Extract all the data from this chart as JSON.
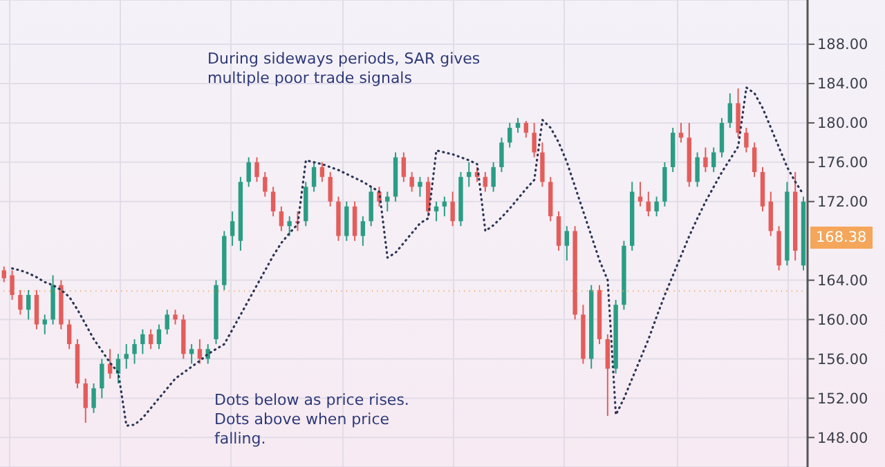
{
  "chart_data": {
    "type": "candlestick",
    "categories": [
      null,
      null,
      null,
      null,
      null,
      null,
      null,
      null,
      null,
      null,
      null,
      null,
      null,
      null,
      null,
      null,
      null,
      null,
      null,
      null,
      null,
      null,
      null,
      null,
      null,
      null,
      null,
      null,
      null,
      null,
      null,
      null,
      null,
      null,
      null,
      null,
      null,
      null,
      null,
      null,
      null,
      null,
      null,
      null,
      null,
      null,
      null,
      null,
      null,
      null,
      null,
      null,
      null,
      null,
      null,
      null,
      null,
      null,
      null,
      null,
      null,
      null,
      null,
      null,
      null,
      null,
      null,
      null,
      null,
      null,
      null,
      null,
      null,
      null,
      null,
      null,
      null,
      null,
      null,
      null,
      null,
      null,
      null,
      null,
      null,
      null,
      null,
      null,
      null,
      null,
      null,
      null,
      null,
      null,
      null,
      null,
      null,
      null,
      null
    ],
    "ohlc": [
      [
        165,
        165.4,
        163.8,
        164.2
      ],
      [
        164.5,
        165,
        162,
        162.5
      ],
      [
        162.5,
        163,
        160.5,
        161
      ],
      [
        161,
        163,
        160,
        162.5
      ],
      [
        162.5,
        163,
        159,
        159.5
      ],
      [
        159.5,
        160.5,
        158.5,
        160
      ],
      [
        160,
        164.5,
        159.5,
        163.5
      ],
      [
        163.5,
        164,
        159,
        159.5
      ],
      [
        159.5,
        160,
        157,
        157.5
      ],
      [
        157.5,
        158,
        153,
        153.5
      ],
      [
        153.5,
        154,
        149.5,
        151
      ],
      [
        151,
        153.5,
        150.5,
        153
      ],
      [
        153,
        156,
        152,
        155.5
      ],
      [
        155.5,
        157,
        154,
        154.5
      ],
      [
        154.5,
        156.5,
        153.5,
        156
      ],
      [
        156,
        157.5,
        155,
        156.5
      ],
      [
        156.5,
        158,
        155.5,
        157.5
      ],
      [
        157.5,
        159,
        156.5,
        158.5
      ],
      [
        158.5,
        159,
        157,
        157.5
      ],
      [
        157.5,
        159.5,
        157,
        159
      ],
      [
        159,
        161,
        158.5,
        160.5
      ],
      [
        160.5,
        161,
        159.5,
        160
      ],
      [
        160,
        160.5,
        156,
        156.5
      ],
      [
        156.5,
        157.5,
        155.5,
        157
      ],
      [
        157,
        158,
        155.5,
        156
      ],
      [
        156,
        157.5,
        155.5,
        157
      ],
      [
        158,
        164,
        157.5,
        163.5
      ],
      [
        163.5,
        169,
        163,
        168.5
      ],
      [
        168.5,
        171,
        167.5,
        170
      ],
      [
        168,
        174.5,
        167,
        174
      ],
      [
        174,
        176.5,
        173.5,
        176
      ],
      [
        176,
        176.5,
        174,
        174.5
      ],
      [
        174.5,
        175,
        172.5,
        173
      ],
      [
        173,
        173.5,
        170.5,
        171
      ],
      [
        171,
        171.5,
        169,
        169.5
      ],
      [
        169.5,
        170.5,
        168.5,
        170
      ],
      [
        170,
        171,
        169,
        169.8
      ],
      [
        170,
        174,
        169.5,
        173.5
      ],
      [
        173.5,
        176,
        173,
        175.5
      ],
      [
        175.5,
        176,
        174,
        174.5
      ],
      [
        174.5,
        175,
        171.5,
        172
      ],
      [
        172,
        172.5,
        168,
        168.5
      ],
      [
        168.5,
        172,
        168,
        171.5
      ],
      [
        171.5,
        172,
        168,
        168.5
      ],
      [
        168.5,
        170.5,
        167.5,
        170
      ],
      [
        170,
        173.5,
        169.5,
        173
      ],
      [
        173,
        173.5,
        171.5,
        172
      ],
      [
        172,
        173,
        171,
        172.5
      ],
      [
        172.5,
        177,
        172,
        176.5
      ],
      [
        176.5,
        177,
        174,
        174.5
      ],
      [
        174.5,
        175,
        173,
        173.5
      ],
      [
        173.5,
        174.5,
        172.5,
        174
      ],
      [
        174,
        174.5,
        170.5,
        171
      ],
      [
        171,
        172,
        170,
        171.5
      ],
      [
        171.5,
        172.5,
        170.5,
        172
      ],
      [
        172,
        173,
        169.5,
        170
      ],
      [
        170,
        175,
        169.5,
        174.5
      ],
      [
        174.5,
        176,
        173.5,
        175
      ],
      [
        175,
        175.5,
        174,
        174.5
      ],
      [
        174.5,
        175,
        173,
        173.5
      ],
      [
        173.5,
        176,
        173,
        175.5
      ],
      [
        175.5,
        178.5,
        175,
        178
      ],
      [
        178,
        180,
        177.5,
        179.5
      ],
      [
        179.5,
        180.5,
        179,
        180
      ],
      [
        180,
        180.2,
        178.5,
        179
      ],
      [
        179,
        180,
        176.5,
        177
      ],
      [
        177,
        178,
        173.5,
        174
      ],
      [
        174,
        174.5,
        170,
        170.5
      ],
      [
        170.5,
        171,
        167,
        167.5
      ],
      [
        167.5,
        169.5,
        166,
        169
      ],
      [
        169,
        169.5,
        160,
        160.5
      ],
      [
        160.5,
        161.5,
        155.5,
        156
      ],
      [
        156,
        163.5,
        155,
        163
      ],
      [
        163,
        163.5,
        157.5,
        158
      ],
      [
        158,
        158.5,
        150.2,
        155
      ],
      [
        155,
        162,
        154.5,
        161.5
      ],
      [
        161.5,
        168,
        161,
        167.5
      ],
      [
        167.5,
        174,
        167,
        173
      ],
      [
        172.5,
        174,
        171.5,
        172
      ],
      [
        172,
        173,
        170.5,
        171
      ],
      [
        171,
        172.5,
        170.5,
        172
      ],
      [
        172,
        176,
        171.5,
        175.5
      ],
      [
        175.5,
        179.5,
        175,
        179
      ],
      [
        179,
        180,
        178,
        178.5
      ],
      [
        178.5,
        180,
        173.5,
        174
      ],
      [
        174,
        177,
        173.5,
        176.5
      ],
      [
        176.5,
        177.5,
        175,
        175.5
      ],
      [
        175.5,
        177.5,
        175,
        177
      ],
      [
        177,
        180.5,
        176.5,
        180
      ],
      [
        180,
        183,
        179.5,
        182
      ],
      [
        182,
        183.5,
        178.5,
        179
      ],
      [
        179,
        179.5,
        177,
        177.5
      ],
      [
        177.5,
        178,
        174.5,
        175
      ],
      [
        175,
        175.5,
        171,
        171.5
      ],
      [
        172,
        173,
        168.5,
        169
      ],
      [
        169,
        169.5,
        165,
        165.5
      ],
      [
        166,
        174,
        165.5,
        173
      ],
      [
        173,
        175,
        166,
        167
      ],
      [
        165.5,
        172.5,
        165,
        172
      ]
    ],
    "colors": [
      "#e35d5b",
      "#e35d5b",
      "#e35d5b",
      "#2a9d84",
      "#e35d5b",
      "#2a9d84",
      "#2a9d84",
      "#e35d5b",
      "#e35d5b",
      "#e35d5b",
      "#e35d5b",
      "#2a9d84",
      "#2a9d84",
      "#e35d5b",
      "#2a9d84",
      "#2a9d84",
      "#2a9d84",
      "#2a9d84",
      "#e35d5b",
      "#2a9d84",
      "#2a9d84",
      "#e35d5b",
      "#e35d5b",
      "#2a9d84",
      "#e35d5b",
      "#2a9d84",
      "#2a9d84",
      "#2a9d84",
      "#2a9d84",
      "#2a9d84",
      "#2a9d84",
      "#e35d5b",
      "#e35d5b",
      "#e35d5b",
      "#e35d5b",
      "#2a9d84",
      "#e35d5b",
      "#2a9d84",
      "#2a9d84",
      "#e35d5b",
      "#e35d5b",
      "#e35d5b",
      "#2a9d84",
      "#e35d5b",
      "#2a9d84",
      "#2a9d84",
      "#e35d5b",
      "#2a9d84",
      "#2a9d84",
      "#e35d5b",
      "#e35d5b",
      "#2a9d84",
      "#e35d5b",
      "#2a9d84",
      "#2a9d84",
      "#e35d5b",
      "#2a9d84",
      "#2a9d84",
      "#e35d5b",
      "#e35d5b",
      "#2a9d84",
      "#2a9d84",
      "#2a9d84",
      "#2a9d84",
      "#e35d5b",
      "#e35d5b",
      "#e35d5b",
      "#e35d5b",
      "#e35d5b",
      "#2a9d84",
      "#e35d5b",
      "#e35d5b",
      "#2a9d84",
      "#e35d5b",
      "#e35d5b",
      "#2a9d84",
      "#2a9d84",
      "#2a9d84",
      "#e35d5b",
      "#e35d5b",
      "#2a9d84",
      "#2a9d84",
      "#2a9d84",
      "#e35d5b",
      "#e35d5b",
      "#2a9d84",
      "#e35d5b",
      "#2a9d84",
      "#2a9d84",
      "#2a9d84",
      "#e35d5b",
      "#e35d5b",
      "#e35d5b",
      "#e35d5b",
      "#e35d5b",
      "#e35d5b",
      "#2a9d84",
      "#e35d5b",
      "#2a9d84"
    ],
    "series": [
      {
        "type": "line",
        "color": "#2b3655",
        "line_style": "dotted",
        "values": [
          null,
          165.2,
          165,
          164.7,
          164.3,
          163.8,
          163.5,
          163,
          162.3,
          161,
          159.5,
          158,
          156.8,
          155.6,
          154.6,
          149.2,
          149.3,
          150,
          151,
          152,
          153,
          154,
          154.6,
          155.2,
          155.8,
          156.5,
          157,
          157.5,
          159,
          160.5,
          162,
          163.5,
          165,
          166.5,
          167.8,
          168.8,
          169.7,
          176.2,
          176,
          175.8,
          175.5,
          175.2,
          174.8,
          174.4,
          174,
          173.5,
          173,
          166.3,
          166.8,
          167.8,
          168.8,
          169.8,
          170.3,
          177.2,
          177,
          176.8,
          176.5,
          176.2,
          175.8,
          169,
          169.6,
          170.4,
          171.3,
          172.3,
          173.3,
          174.2,
          180.3,
          179.5,
          178,
          176,
          173.5,
          171,
          168.5,
          166,
          164,
          150.3,
          152,
          154,
          156,
          158,
          160.3,
          162.5,
          164.5,
          166.5,
          168.5,
          170.3,
          172,
          173.5,
          175,
          176.3,
          177.6,
          183.6,
          183,
          181.5,
          179.5,
          177.5,
          175.5,
          174,
          172.7
        ]
      }
    ],
    "ylim": [
      145,
      192.5
    ],
    "yticks": [
      {
        "value": 148,
        "label": "148.00"
      },
      {
        "value": 152,
        "label": "152.00"
      },
      {
        "value": 156,
        "label": "156.00"
      },
      {
        "value": 160,
        "label": "160.00"
      },
      {
        "value": 164,
        "label": "164.00"
      },
      {
        "value": 172,
        "label": "172.00"
      },
      {
        "value": 176,
        "label": "176.00"
      },
      {
        "value": 180,
        "label": "180.00"
      },
      {
        "value": 184,
        "label": "184.00"
      },
      {
        "value": 188,
        "label": "188.00"
      }
    ],
    "tick_labels": "y",
    "grid": true,
    "marker": "none",
    "ref_lines": [
      {
        "axis": "y",
        "value": 162.9,
        "color": "#f0a860",
        "line_style": "dotted"
      }
    ],
    "annotations": [
      "During sideways periods, SAR gives multiple poor trade signals",
      "Dots below as price rises. Dots above when price falling.",
      "168.38"
    ]
  }
}
